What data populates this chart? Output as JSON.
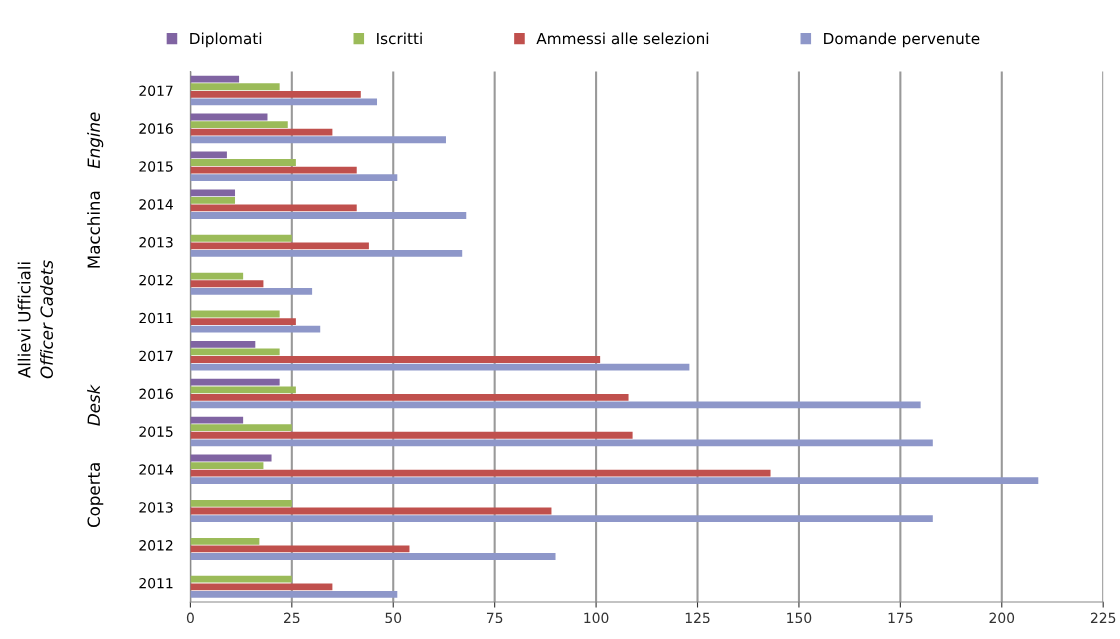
{
  "chart_data": {
    "type": "bar",
    "orientation": "horizontal",
    "categories": [
      "2017",
      "2016",
      "2015",
      "2014",
      "2013",
      "2012",
      "2011",
      "2017",
      "2016",
      "2015",
      "2014",
      "2013",
      "2012",
      "2011"
    ],
    "series": [
      {
        "name": "Diplomati",
        "color": "#8064a2",
        "values": [
          12,
          19,
          9,
          11,
          null,
          null,
          null,
          16,
          22,
          13,
          20,
          null,
          null,
          null
        ]
      },
      {
        "name": "Iscritti",
        "color": "#9bbb59",
        "values": [
          22,
          24,
          26,
          11,
          25,
          13,
          22,
          22,
          26,
          25,
          18,
          25,
          17,
          25
        ]
      },
      {
        "name": "Ammessi alle selezioni",
        "color": "#c0504d",
        "values": [
          42,
          35,
          41,
          41,
          44,
          18,
          26,
          101,
          108,
          109,
          143,
          89,
          54,
          35
        ]
      },
      {
        "name": "Domande pervenute",
        "color": "#8e97c9",
        "values": [
          46,
          63,
          51,
          68,
          67,
          30,
          32,
          123,
          180,
          183,
          209,
          183,
          90,
          51
        ]
      }
    ],
    "xlim": [
      0,
      225
    ],
    "xticks": [
      0,
      25,
      50,
      75,
      100,
      125,
      150,
      175,
      200,
      225
    ],
    "grid": "x",
    "legend": "top",
    "annotations": [
      "Allievi Ufficiali",
      "Officer Cadets",
      "Macchina",
      "Engine",
      "Coperta",
      "Desk"
    ]
  }
}
